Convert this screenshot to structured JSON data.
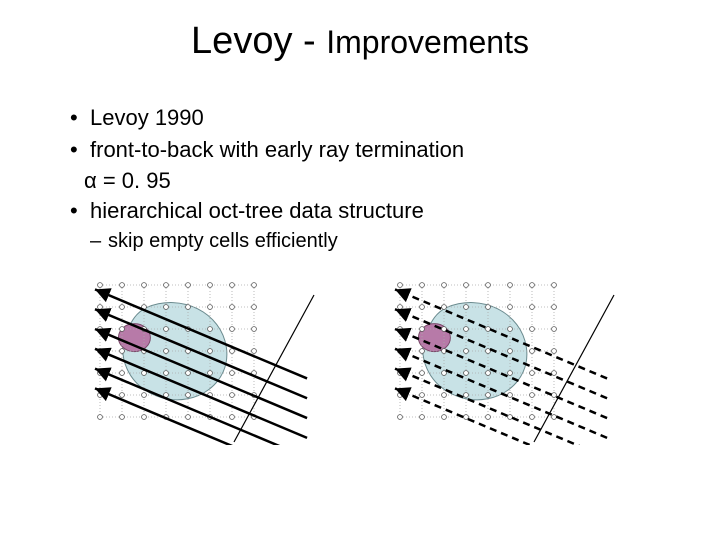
{
  "title_main": "Levoy - ",
  "title_sub": "Improvements",
  "bullets": {
    "b1": "Levoy 1990",
    "b2": "front-to-back with early ray termination",
    "b2_indent": "α = 0. 95",
    "b3": "hierarchical oct-tree data structure",
    "sub1": "skip empty cells efficiently"
  },
  "diagram": {
    "grid_cols": 7,
    "grid_rows": 6,
    "cell_size": 22,
    "grid_color": "#aaaaaa",
    "vertex_color": "#555555",
    "ray_color": "#000000",
    "ray_width_solid": 2.5,
    "ray_width_dash": 2.5,
    "blob_fill": "#c8e2e6",
    "blob_stroke": "#6a8a8e",
    "lump_fill": "#b77aa8",
    "lump_stroke": "#7a4a6a",
    "baseline_color": "#000000"
  }
}
